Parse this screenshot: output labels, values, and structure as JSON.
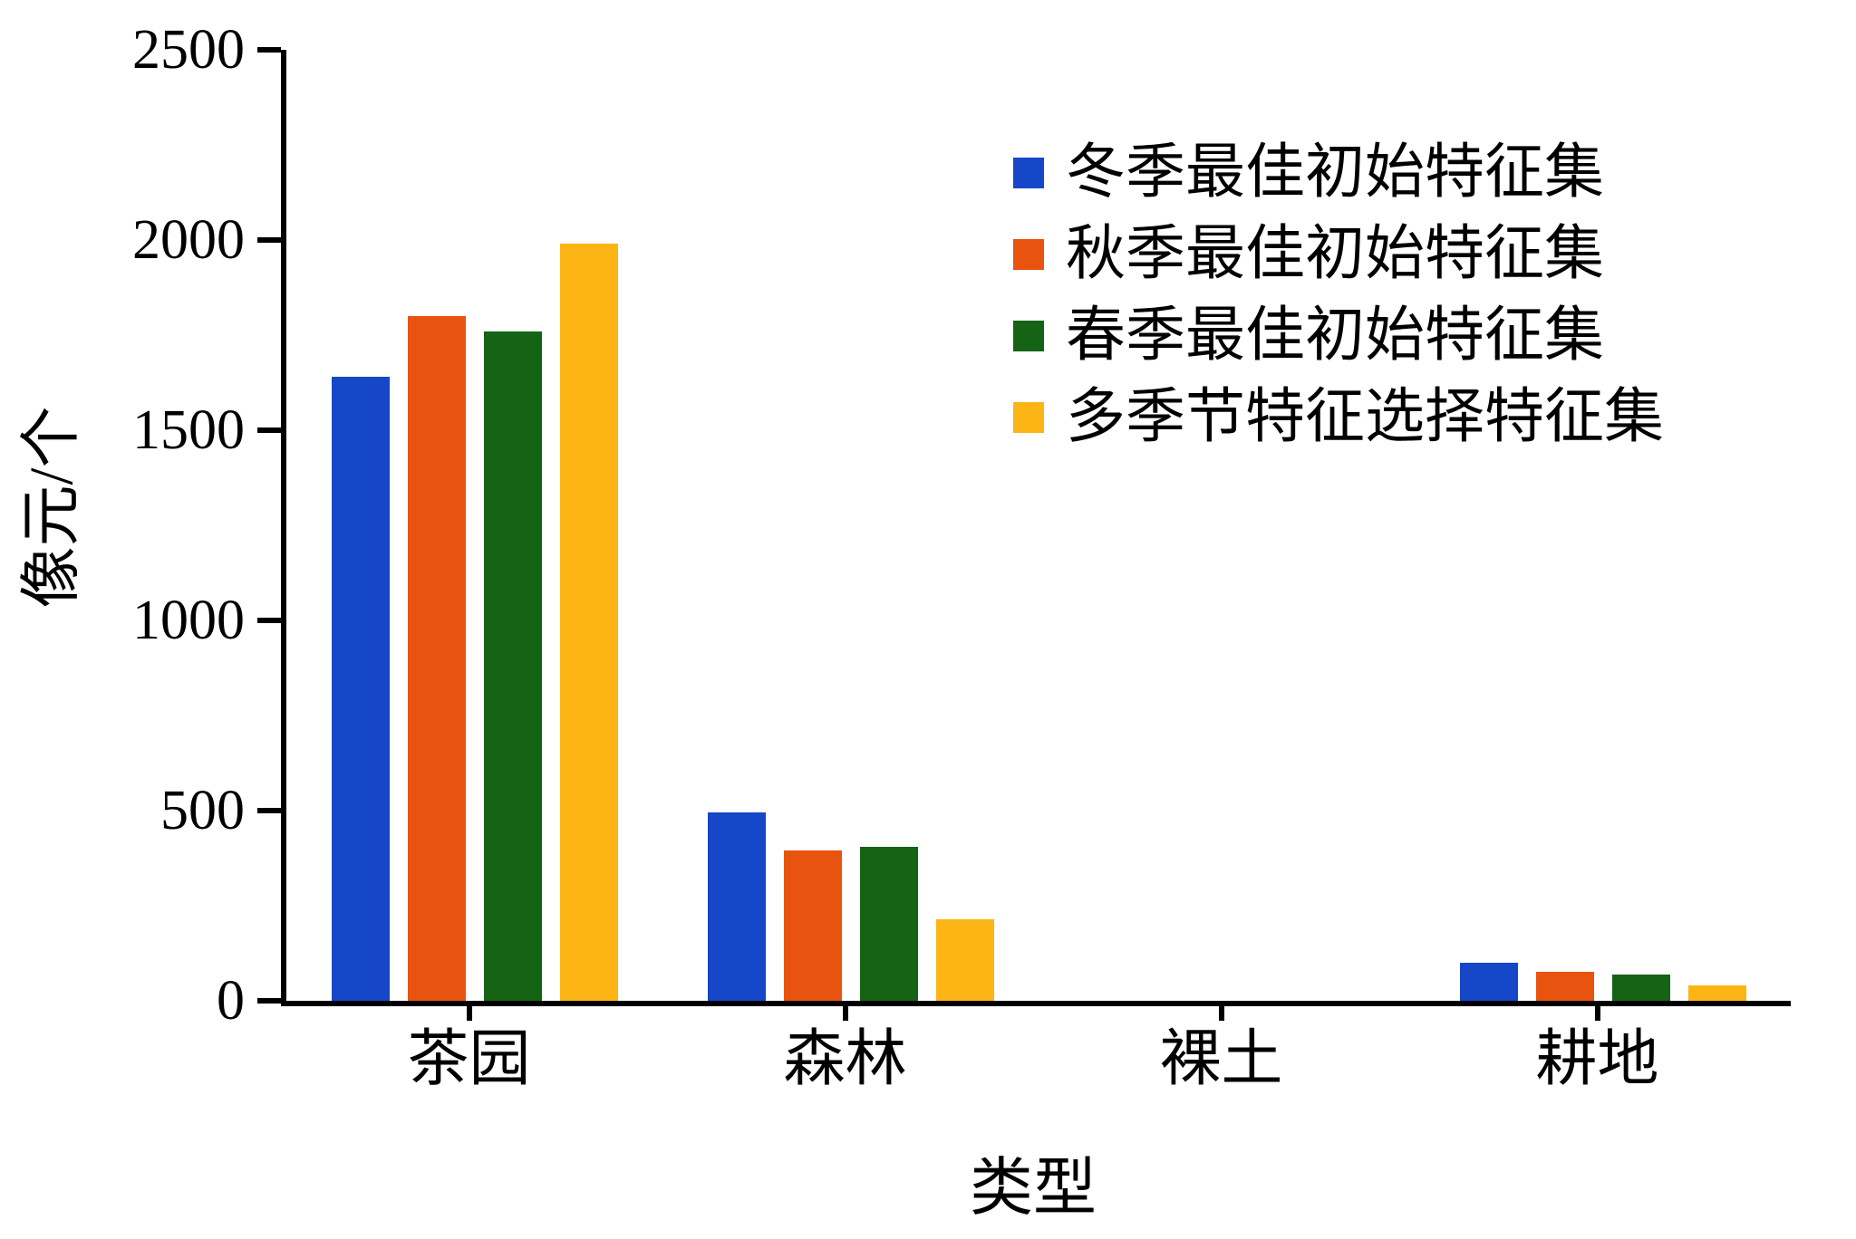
{
  "chart_data": {
    "type": "bar",
    "title": "",
    "xlabel": "类型",
    "ylabel": "像元/个",
    "ylim": [
      0,
      2500
    ],
    "yticks": [
      0,
      500,
      1000,
      1500,
      2000,
      2500
    ],
    "categories": [
      "茶园",
      "森林",
      "裸土",
      "耕地"
    ],
    "series": [
      {
        "name": "冬季最佳初始特征集",
        "color": "#1647C8",
        "values": [
          1640,
          495,
          0,
          100
        ]
      },
      {
        "name": "秋季最佳初始特征集",
        "color": "#E85410",
        "values": [
          1800,
          395,
          0,
          75
        ]
      },
      {
        "name": "春季最佳初始特征集",
        "color": "#156315",
        "values": [
          1760,
          405,
          0,
          70
        ]
      },
      {
        "name": "多季节特征选择特征集",
        "color": "#FCB514",
        "values": [
          1990,
          215,
          0,
          40
        ]
      }
    ],
    "legend_position": "upper right",
    "grid": false,
    "background": "#ffffff",
    "axis_color": "#000000"
  }
}
